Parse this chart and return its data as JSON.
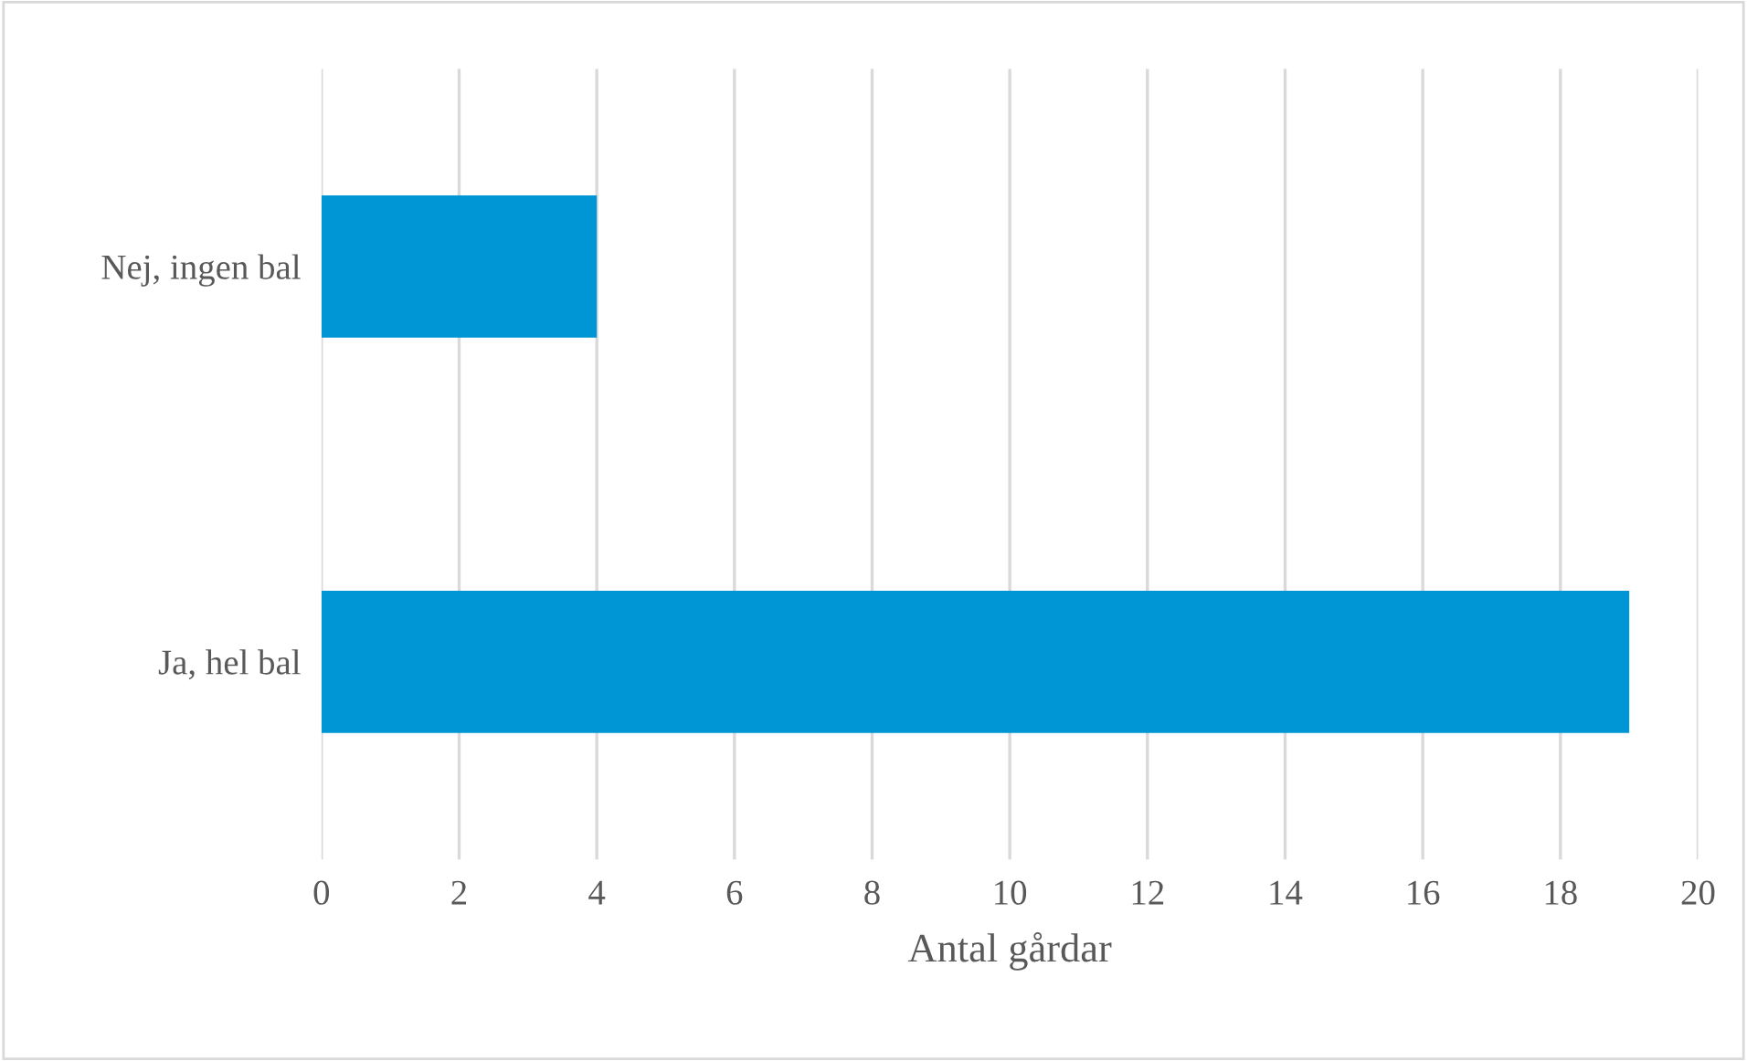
{
  "chart_data": {
    "type": "bar",
    "orientation": "horizontal",
    "categories": [
      "Nej, ingen bal",
      "Ja, hel bal"
    ],
    "values": [
      4,
      19
    ],
    "color": "#0096d6",
    "xlabel": "Antal gårdar",
    "xlim": [
      0,
      20
    ],
    "xticks": [
      0,
      2,
      4,
      6,
      8,
      10,
      12,
      14,
      16,
      18,
      20
    ],
    "grid": "x"
  }
}
